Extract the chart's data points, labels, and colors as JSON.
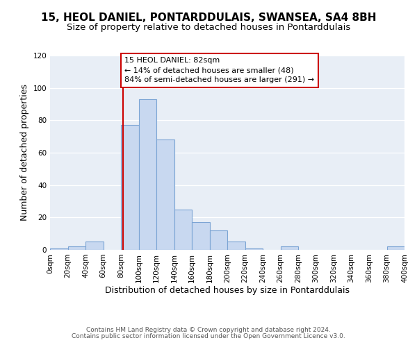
{
  "title_line1": "15, HEOL DANIEL, PONTARDDULAIS, SWANSEA, SA4 8BH",
  "title_line2": "Size of property relative to detached houses in Pontarddulais",
  "xlabel": "Distribution of detached houses by size in Pontarddulais",
  "ylabel": "Number of detached properties",
  "bin_edges": [
    0,
    20,
    40,
    60,
    80,
    100,
    120,
    140,
    160,
    180,
    200,
    220,
    240,
    260,
    280,
    300,
    320,
    340,
    360,
    380,
    400
  ],
  "bar_heights": [
    1,
    2,
    5,
    0,
    77,
    93,
    68,
    25,
    17,
    12,
    5,
    1,
    0,
    2,
    0,
    0,
    0,
    0,
    0,
    2
  ],
  "bar_color": "#c8d8f0",
  "bar_edge_color": "#7ba4d4",
  "property_size": 82,
  "vline_color": "#cc0000",
  "annotation_box_edge_color": "#cc0000",
  "annotation_line1": "15 HEOL DANIEL: 82sqm",
  "annotation_line2": "← 14% of detached houses are smaller (48)",
  "annotation_line3": "84% of semi-detached houses are larger (291) →",
  "ylim": [
    0,
    120
  ],
  "xlim": [
    0,
    400
  ],
  "bg_color": "#e8eef6",
  "grid_color": "#ffffff",
  "footer_line1": "Contains HM Land Registry data © Crown copyright and database right 2024.",
  "footer_line2": "Contains public sector information licensed under the Open Government Licence v3.0.",
  "tick_fontsize": 7.5,
  "label_fontsize": 9,
  "title1_fontsize": 11,
  "title2_fontsize": 9.5,
  "annotation_fontsize": 8,
  "footer_fontsize": 6.5
}
